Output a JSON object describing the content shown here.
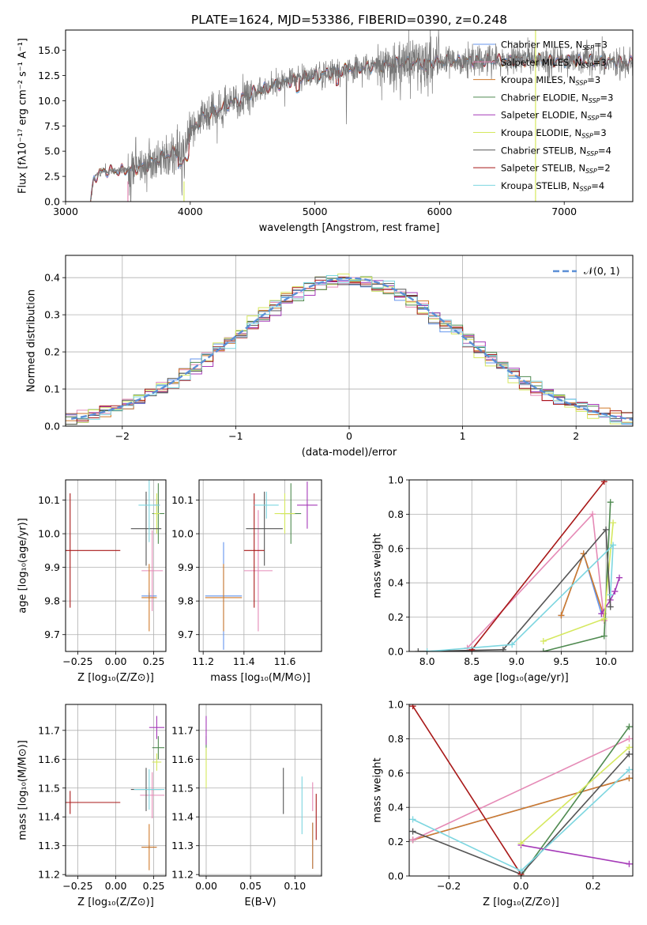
{
  "colors": {
    "chabrier_miles": "#6495ED",
    "salpeter_miles": "#E58AB6",
    "kroupa_miles": "#D07A2B",
    "chabrier_elodie": "#4F8A50",
    "salpeter_elodie": "#A53AB8",
    "kroupa_elodie": "#D5E85E",
    "chabrier_stelib": "#555555",
    "salpeter_stelib": "#A81818",
    "kroupa_stelib": "#7DD6E0"
  },
  "chart_data": [
    {
      "id": "spectrum",
      "type": "line",
      "title": "PLATE=1624, MJD=53386, FIBERID=0390, z=0.248",
      "xlabel": "wavelength [Angstrom, rest frame]",
      "ylabel": "Flux [fλ10⁻¹⁷ erg cm⁻² s⁻¹ A⁻¹]",
      "xlim": [
        3000,
        7550
      ],
      "ylim": [
        0,
        17
      ],
      "xticks": [
        "3000",
        "4000",
        "5000",
        "6000",
        "7000"
      ],
      "yticks": [
        "0.0",
        "2.5",
        "5.0",
        "7.5",
        "10.0",
        "12.5",
        "15.0"
      ],
      "legend_position": "upper-right",
      "legend": [
        {
          "key": "chabrier_miles",
          "text": "Chabrier MILES, N",
          "sub": "SSP",
          "tail": "=3"
        },
        {
          "key": "salpeter_miles",
          "text": "Salpeter MILES, N",
          "sub": "SSP",
          "tail": "=3"
        },
        {
          "key": "kroupa_miles",
          "text": "Kroupa MILES, N",
          "sub": "SSP",
          "tail": "=3"
        },
        {
          "key": "chabrier_elodie",
          "text": "Chabrier ELODIE, N",
          "sub": "SSP",
          "tail": "=3"
        },
        {
          "key": "salpeter_elodie",
          "text": "Salpeter ELODIE, N",
          "sub": "SSP",
          "tail": "=4"
        },
        {
          "key": "kroupa_elodie",
          "text": "Kroupa ELODIE, N",
          "sub": "SSP",
          "tail": "=3"
        },
        {
          "key": "chabrier_stelib",
          "text": "Chabrier STELIB, N",
          "sub": "SSP",
          "tail": "=4"
        },
        {
          "key": "salpeter_stelib",
          "text": "Salpeter STELIB, N",
          "sub": "SSP",
          "tail": "=2"
        },
        {
          "key": "kroupa_stelib",
          "text": "Kroupa STELIB, N",
          "sub": "SSP",
          "tail": "=4"
        }
      ],
      "spectrum_range": [
        3200,
        7550
      ],
      "continuum_wl": [
        3200,
        3230,
        3300,
        3500,
        3650,
        3800,
        3950,
        4000,
        4100,
        4300,
        4500,
        4800,
        5200,
        5600,
        6000,
        6500,
        7000,
        7550
      ],
      "continuum_flux": [
        0,
        2.5,
        3.0,
        3.1,
        3.6,
        4.6,
        5.2,
        7.0,
        8.3,
        9.6,
        10.8,
        12.0,
        13.0,
        13.6,
        13.9,
        14.0,
        14.0,
        13.8
      ]
    },
    {
      "id": "residuals",
      "type": "line",
      "xlabel": "(data-model)/error",
      "ylabel": "Normed distribution",
      "xlim": [
        -2.5,
        2.5
      ],
      "ylim": [
        0,
        0.46
      ],
      "xticks": [
        "−2",
        "−1",
        "0",
        "1",
        "2"
      ],
      "yticks": [
        "0.0",
        "0.1",
        "0.2",
        "0.3",
        "0.4"
      ],
      "grid": true,
      "legend_position": "upper-right",
      "legend": "𝒩(0, 1)",
      "reference_curve": "normal(0,1)",
      "bin_edges_start": -2.5,
      "bin_width": 0.1,
      "n_bins": 50
    },
    {
      "id": "age_vs_Z",
      "type": "scatter",
      "xlabel": "Z [log₁₀(Z/Z⊙)]",
      "ylabel": "age  [log₁₀(age/yr)]",
      "xlim": [
        -0.33,
        0.33
      ],
      "ylim": [
        9.65,
        10.16
      ],
      "xticks": [
        "−0.25",
        "0.00",
        "0.25"
      ],
      "yticks": [
        "9.7",
        "9.8",
        "9.9",
        "10.0",
        "10.1"
      ],
      "grid": true,
      "points": [
        {
          "key": "chabrier_miles",
          "x": 0.22,
          "y": 9.815,
          "xerr": 0.05,
          "yerr": 0.01
        },
        {
          "key": "salpeter_miles",
          "x": 0.24,
          "y": 9.89,
          "xerr": 0.07,
          "yerr": 0.12
        },
        {
          "key": "kroupa_miles",
          "x": 0.22,
          "y": 9.81,
          "xerr": 0.05,
          "yerr": 0.1
        },
        {
          "key": "chabrier_elodie",
          "x": 0.28,
          "y": 10.06,
          "xerr": 0.04,
          "yerr": 0.09
        },
        {
          "key": "salpeter_elodie",
          "x": 0.27,
          "y": 10.085,
          "xerr": 0.02,
          "yerr": 0.02
        },
        {
          "key": "kroupa_elodie",
          "x": 0.27,
          "y": 10.06,
          "xerr": 0.02,
          "yerr": 0.06
        },
        {
          "key": "chabrier_stelib",
          "x": 0.2,
          "y": 10.015,
          "xerr": 0.1,
          "yerr": 0.11
        },
        {
          "key": "salpeter_stelib",
          "x": -0.3,
          "y": 9.95,
          "xerr": 0.33,
          "yerr": 0.17
        },
        {
          "key": "kroupa_stelib",
          "x": 0.22,
          "y": 10.085,
          "xerr": 0.07,
          "yerr": 0.11
        }
      ]
    },
    {
      "id": "age_vs_mass",
      "type": "scatter",
      "xlabel": "mass [log₁₀(M/M⊙)]",
      "ylabel": "",
      "xlim": [
        11.18,
        11.78
      ],
      "ylim": [
        9.65,
        10.16
      ],
      "xticks": [
        "11.2",
        "11.4",
        "11.6"
      ],
      "yticks": [
        "9.7",
        "9.8",
        "9.9",
        "10.0",
        "10.1"
      ],
      "grid": true,
      "points": [
        {
          "key": "chabrier_miles",
          "x": 11.3,
          "y": 9.815,
          "xerr": 0.09,
          "yerr": 0.16
        },
        {
          "key": "salpeter_miles",
          "x": 11.47,
          "y": 9.89,
          "xerr": 0.07,
          "yerr": 0.18
        },
        {
          "key": "kroupa_miles",
          "x": 11.3,
          "y": 9.81,
          "xerr": 0.09,
          "yerr": 0.1
        },
        {
          "key": "chabrier_elodie",
          "x": 11.63,
          "y": 10.06,
          "xerr": 0.05,
          "yerr": 0.09
        },
        {
          "key": "salpeter_elodie",
          "x": 11.71,
          "y": 10.085,
          "xerr": 0.05,
          "yerr": 0.07
        },
        {
          "key": "kroupa_elodie",
          "x": 11.6,
          "y": 10.06,
          "xerr": 0.05,
          "yerr": 0.06
        },
        {
          "key": "chabrier_stelib",
          "x": 11.5,
          "y": 10.015,
          "xerr": 0.09,
          "yerr": 0.11
        },
        {
          "key": "salpeter_stelib",
          "x": 11.45,
          "y": 9.95,
          "xerr": 0.05,
          "yerr": 0.17
        },
        {
          "key": "kroupa_stelib",
          "x": 11.51,
          "y": 10.085,
          "xerr": 0.06,
          "yerr": 0.04
        }
      ]
    },
    {
      "id": "mass_weight_vs_age",
      "type": "line",
      "xlabel": "age  [log₁₀(age/yr)]",
      "ylabel": "mass weight",
      "xlim": [
        7.8,
        10.3
      ],
      "ylim": [
        0,
        1.0
      ],
      "xticks": [
        "8.0",
        "8.5",
        "9.0",
        "9.5",
        "10.0"
      ],
      "yticks": [
        "0.0",
        "0.2",
        "0.4",
        "0.6",
        "0.8",
        "1.0"
      ],
      "grid": true,
      "series": [
        {
          "key": "chabrier_miles",
          "x": [
            9.5,
            9.75,
            9.95
          ],
          "y": [
            0.21,
            0.57,
            0.22
          ]
        },
        {
          "key": "kroupa_miles",
          "x": [
            9.5,
            9.75,
            9.97
          ],
          "y": [
            0.21,
            0.57,
            0.22
          ]
        },
        {
          "key": "salpeter_miles",
          "x": [
            8.45,
            9.85,
            9.98
          ],
          "y": [
            0.02,
            0.8,
            0.18
          ]
        },
        {
          "key": "chabrier_elodie",
          "x": [
            9.3,
            9.98,
            10.05
          ],
          "y": [
            0.0,
            0.09,
            0.87
          ]
        },
        {
          "key": "salpeter_elodie",
          "x": [
            9.95,
            10.05,
            10.1,
            10.15
          ],
          "y": [
            0.22,
            0.3,
            0.35,
            0.43
          ]
        },
        {
          "key": "kroupa_elodie",
          "x": [
            9.3,
            9.98,
            10.08
          ],
          "y": [
            0.06,
            0.19,
            0.75
          ]
        },
        {
          "key": "chabrier_stelib",
          "x": [
            7.9,
            8.85,
            10.0,
            10.05
          ],
          "y": [
            0.0,
            0.01,
            0.71,
            0.26
          ]
        },
        {
          "key": "salpeter_stelib",
          "x": [
            8.5,
            9.98
          ],
          "y": [
            0.01,
            0.99
          ]
        },
        {
          "key": "kroupa_stelib",
          "x": [
            8.0,
            8.95,
            10.08,
            10.05
          ],
          "y": [
            0.0,
            0.04,
            0.62,
            0.33
          ]
        }
      ]
    },
    {
      "id": "mass_vs_Z",
      "type": "scatter",
      "xlabel": "Z [log₁₀(Z/Z⊙)]",
      "ylabel": "mass [log₁₀(M/M⊙)]",
      "xlim": [
        -0.33,
        0.33
      ],
      "ylim": [
        11.195,
        11.79
      ],
      "xticks": [
        "−0.25",
        "0.00",
        "0.25"
      ],
      "yticks": [
        "11.2",
        "11.3",
        "11.4",
        "11.5",
        "11.6",
        "11.7"
      ],
      "grid": true,
      "points": [
        {
          "key": "chabrier_miles",
          "x": 0.22,
          "y": 11.295,
          "xerr": 0.05,
          "yerr": 0.005
        },
        {
          "key": "salpeter_miles",
          "x": 0.24,
          "y": 11.475,
          "xerr": 0.08,
          "yerr": 0.08
        },
        {
          "key": "kroupa_miles",
          "x": 0.22,
          "y": 11.295,
          "xerr": 0.05,
          "yerr": 0.08
        },
        {
          "key": "chabrier_elodie",
          "x": 0.28,
          "y": 11.64,
          "xerr": 0.04,
          "yerr": 0.04
        },
        {
          "key": "salpeter_elodie",
          "x": 0.27,
          "y": 11.71,
          "xerr": 0.05,
          "yerr": 0.04
        },
        {
          "key": "kroupa_elodie",
          "x": 0.27,
          "y": 11.59,
          "xerr": 0.03,
          "yerr": 0.03
        },
        {
          "key": "chabrier_stelib",
          "x": 0.2,
          "y": 11.495,
          "xerr": 0.1,
          "yerr": 0.075
        },
        {
          "key": "salpeter_stelib",
          "x": -0.3,
          "y": 11.45,
          "xerr": 0.33,
          "yerr": 0.04
        },
        {
          "key": "kroupa_stelib",
          "x": 0.22,
          "y": 11.495,
          "xerr": 0.1,
          "yerr": 0.07
        }
      ]
    },
    {
      "id": "mass_vs_ebv",
      "type": "scatter",
      "xlabel": "E(B-V)",
      "ylabel": "",
      "xlim": [
        -0.008,
        0.13
      ],
      "ylim": [
        11.195,
        11.79
      ],
      "xticks": [
        "0.00",
        "0.05",
        "0.10"
      ],
      "yticks": [
        "11.2",
        "11.3",
        "11.4",
        "11.5",
        "11.6",
        "11.7"
      ],
      "grid": true,
      "points": [
        {
          "key": "chabrier_miles",
          "x": 0.12,
          "y": 11.3,
          "yerr": 0.08
        },
        {
          "key": "salpeter_miles",
          "x": 0.12,
          "y": 11.47,
          "yerr": 0.05
        },
        {
          "key": "kroupa_miles",
          "x": 0.12,
          "y": 11.3,
          "yerr": 0.08
        },
        {
          "key": "chabrier_elodie",
          "x": 0.0,
          "y": 11.64,
          "yerr": 0.04
        },
        {
          "key": "salpeter_elodie",
          "x": 0.0,
          "y": 11.7,
          "yerr": 0.05
        },
        {
          "key": "kroupa_elodie",
          "x": 0.0,
          "y": 11.57,
          "yerr": 0.07
        },
        {
          "key": "chabrier_stelib",
          "x": 0.087,
          "y": 11.49,
          "yerr": 0.08
        },
        {
          "key": "salpeter_stelib",
          "x": 0.124,
          "y": 11.4,
          "yerr": 0.08
        },
        {
          "key": "kroupa_stelib",
          "x": 0.108,
          "y": 11.44,
          "yerr": 0.1
        }
      ]
    },
    {
      "id": "mass_weight_vs_Z",
      "type": "line",
      "xlabel": "Z [log₁₀(Z/Z⊙)]",
      "ylabel": "mass weight",
      "xlim": [
        -0.31,
        0.31
      ],
      "ylim": [
        0,
        1.0
      ],
      "xticks": [
        "−0.2",
        "0.0",
        "0.2"
      ],
      "yticks": [
        "0.0",
        "0.2",
        "0.4",
        "0.6",
        "0.8",
        "1.0"
      ],
      "grid": true,
      "series": [
        {
          "key": "chabrier_miles",
          "x": [
            -0.3,
            0.3
          ],
          "y": [
            0.21,
            0.57
          ]
        },
        {
          "key": "kroupa_miles",
          "x": [
            -0.3,
            0.3
          ],
          "y": [
            0.21,
            0.57
          ]
        },
        {
          "key": "salpeter_miles",
          "x": [
            -0.3,
            0.3
          ],
          "y": [
            0.21,
            0.8
          ]
        },
        {
          "key": "chabrier_elodie",
          "x": [
            0.0,
            0.3
          ],
          "y": [
            0.0,
            0.87
          ]
        },
        {
          "key": "salpeter_elodie",
          "x": [
            0.0,
            0.3
          ],
          "y": [
            0.18,
            0.07
          ]
        },
        {
          "key": "kroupa_elodie",
          "x": [
            0.0,
            0.3
          ],
          "y": [
            0.19,
            0.75
          ]
        },
        {
          "key": "chabrier_stelib",
          "x": [
            -0.3,
            0.0,
            0.3
          ],
          "y": [
            0.26,
            0.01,
            0.71
          ]
        },
        {
          "key": "salpeter_stelib",
          "x": [
            -0.3,
            0.0
          ],
          "y": [
            0.99,
            0.01
          ]
        },
        {
          "key": "kroupa_stelib",
          "x": [
            -0.3,
            0.0,
            0.3
          ],
          "y": [
            0.33,
            0.03,
            0.62
          ]
        }
      ]
    }
  ]
}
